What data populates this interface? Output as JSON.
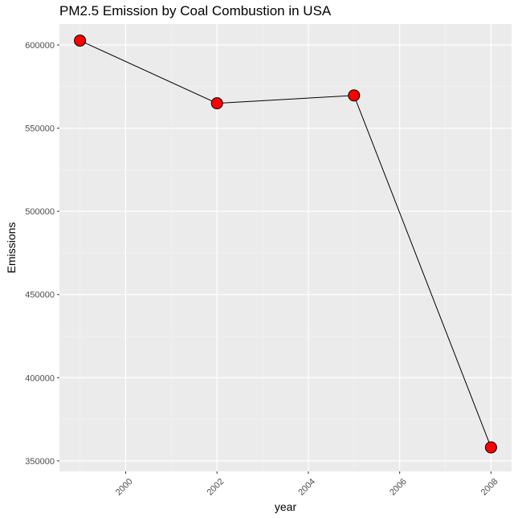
{
  "chart_data": {
    "type": "line",
    "title": "PM2.5 Emission by Coal Combustion in USA",
    "xlabel": "year",
    "ylabel": "Emissions",
    "x": [
      1999,
      2002,
      2005,
      2008
    ],
    "y": [
      602624,
      564940,
      569654,
      358083
    ],
    "xlim": [
      1998.55,
      2008.45
    ],
    "ylim": [
      343656,
      612551
    ],
    "x_ticks": [
      2000,
      2002,
      2004,
      2006,
      2008
    ],
    "x_tick_labels": [
      "2000",
      "2002",
      "2004",
      "2006",
      "2008"
    ],
    "y_ticks": [
      350000,
      400000,
      450000,
      500000,
      550000,
      600000
    ],
    "y_tick_labels": [
      "350000",
      "400000",
      "450000",
      "500000",
      "550000",
      "600000"
    ],
    "x_tick_rotation": -45,
    "grid": true,
    "legend": "none",
    "colors": {
      "panel_background": "#ebebeb",
      "grid_major": "#ffffff",
      "grid_minor": "#f5f5f5",
      "line": "#000000",
      "point_fill": "#ff0000",
      "point_stroke": "#000000",
      "tick_color": "#333333"
    }
  }
}
